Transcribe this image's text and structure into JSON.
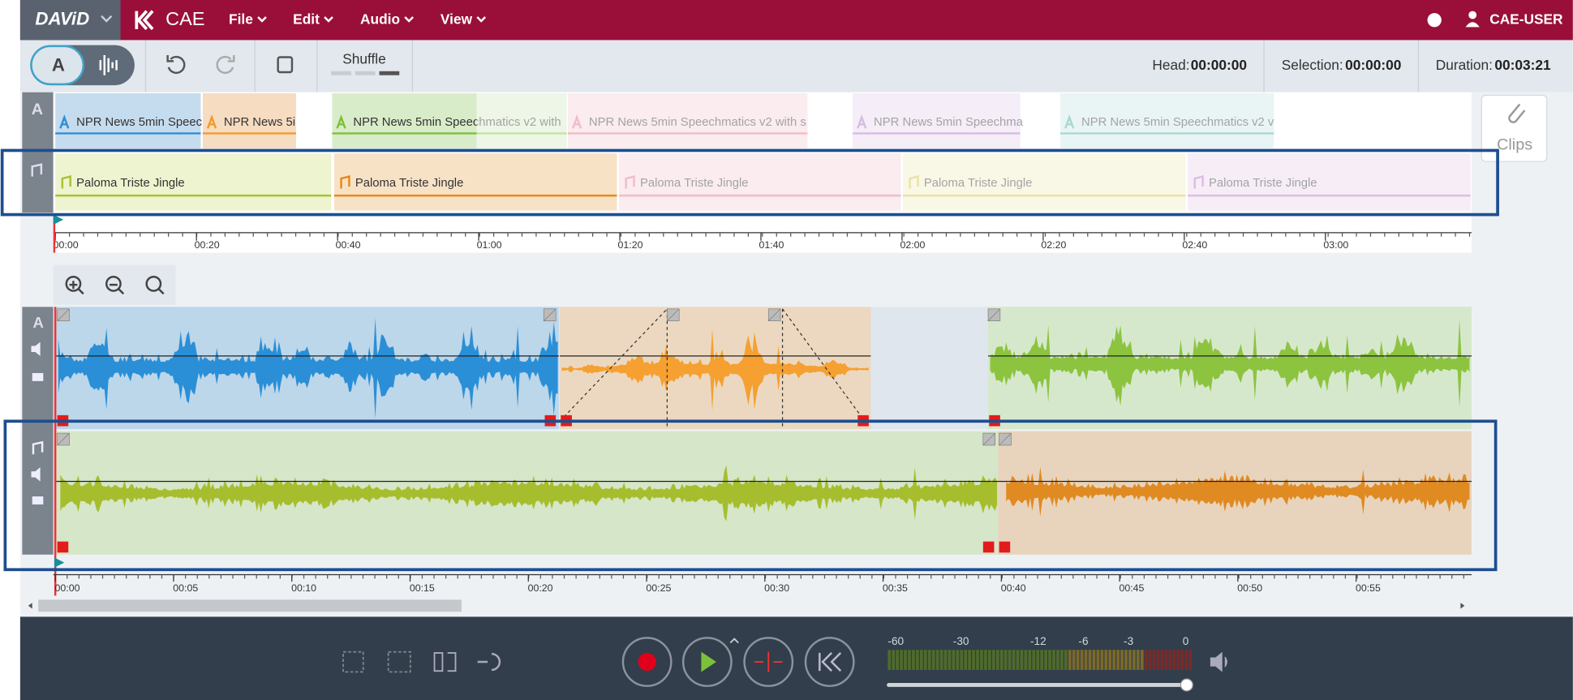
{
  "menu": {
    "logo": "DAViD",
    "app": "CAE",
    "items": [
      "File",
      "Edit",
      "Audio",
      "View"
    ],
    "user": "CAE-USER"
  },
  "toolbar": {
    "mode": "A",
    "shuffle": "Shuffle",
    "head_label": "Head:",
    "head": "00:00:00",
    "selection_label": "Selection:",
    "selection": "00:00:00",
    "duration_label": "Duration:",
    "duration": "00:03:21"
  },
  "overview": {
    "track_label": "A",
    "text_clips": [
      "NPR News 5min Speech",
      "NPR News 5i",
      "NPR News 5min Speechmatics v2 with",
      "NPR News 5min Speechmatics v2 with s",
      "NPR News 5min Speechma",
      "NPR News 5min Speechmatics v2 v"
    ],
    "music_clips": [
      "Paloma Triste Jingle",
      "Paloma Triste Jingle",
      "Paloma Triste Jingle",
      "Paloma Triste Jingle",
      "Paloma Triste Jingle"
    ],
    "ruler": [
      "00:00",
      "00:20",
      "00:40",
      "01:00",
      "01:20",
      "01:40",
      "02:00",
      "02:20",
      "02:40",
      "03:00"
    ]
  },
  "clips_button": "Clips",
  "editor": {
    "track_label": "A",
    "ruler": [
      "00:00",
      "00:05",
      "00:10",
      "00:15",
      "00:20",
      "00:25",
      "00:30",
      "00:35",
      "00:40",
      "00:45",
      "00:50",
      "00:55"
    ]
  },
  "meter": {
    "scale": [
      "-60",
      "-30",
      "-12",
      "-6",
      "-3",
      "0"
    ]
  }
}
